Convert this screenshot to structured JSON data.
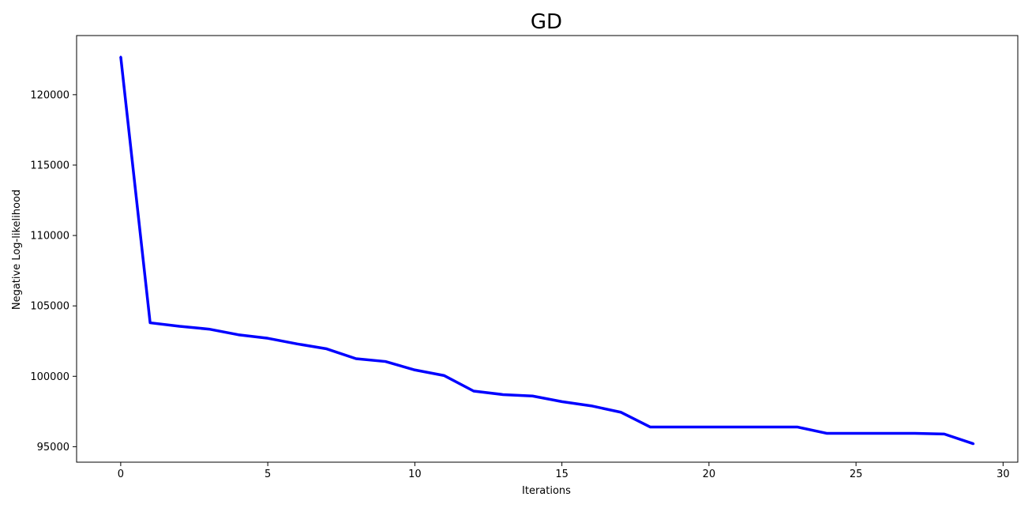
{
  "chart_data": {
    "type": "line",
    "title": "GD",
    "xlabel": "Iterations",
    "ylabel": "Negative Log-likelihood",
    "xlim": [
      -1.5,
      30.5
    ],
    "ylim": [
      93900,
      124200
    ],
    "xticks": [
      0,
      5,
      10,
      15,
      20,
      25,
      30
    ],
    "yticks": [
      95000,
      100000,
      105000,
      110000,
      115000,
      120000
    ],
    "grid": false,
    "line_color": "#0000ff",
    "series": [
      {
        "x": [
          0,
          1,
          2,
          3,
          4,
          5,
          6,
          7,
          8,
          9,
          10,
          11,
          12,
          13,
          14,
          15,
          16,
          17,
          18,
          19,
          20,
          21,
          22,
          23,
          24,
          25,
          26,
          27,
          28,
          29
        ],
        "values": [
          122700,
          103800,
          103550,
          103350,
          102950,
          102700,
          102300,
          101950,
          101250,
          101050,
          100450,
          100050,
          98950,
          98700,
          98600,
          98200,
          97900,
          97450,
          96400,
          96400,
          96400,
          96400,
          96400,
          96400,
          95950,
          95950,
          95950,
          95950,
          95900,
          95200
        ]
      }
    ]
  }
}
